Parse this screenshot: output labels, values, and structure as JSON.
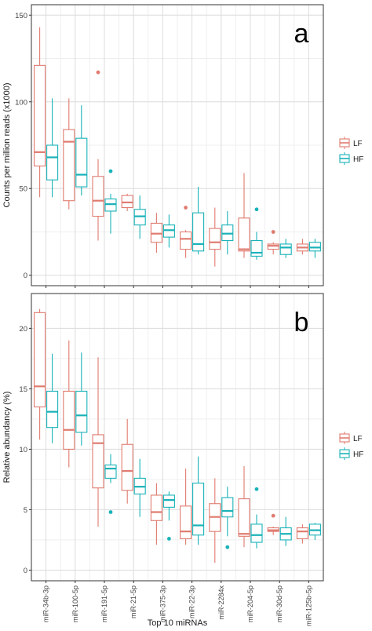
{
  "colors": {
    "LF": "#e07b6f",
    "HF": "#19b2b8",
    "grid_major": "#dcdcdc",
    "grid_minor": "#efefef",
    "border": "#333333",
    "text": "#1a1a1a"
  },
  "chart_data": [
    {
      "type": "boxplot",
      "panel_label": "a",
      "ylabel": "Counts per million reads (x1000)",
      "xlabel": "",
      "ylim": [
        0,
        150
      ],
      "yticks": [
        0,
        50,
        100,
        150
      ],
      "grid": true,
      "legend": {
        "placement": "right",
        "entries": [
          "LF",
          "HF"
        ]
      },
      "categories": [
        "miR-34b-3p",
        "miR-100-5p",
        "miR-191-5p",
        "miR-21-5p",
        "miR-375-3p",
        "miR-22-3p",
        "miR-2284x",
        "miR-204-5p",
        "miR-30d-5p",
        "miR-125b-5p"
      ],
      "series": [
        {
          "name": "LF",
          "boxes": [
            {
              "min": 45,
              "q1": 63,
              "median": 71,
              "q3": 121,
              "max": 143,
              "outliers": []
            },
            {
              "min": 38,
              "q1": 43,
              "median": 77,
              "q3": 84,
              "max": 102,
              "outliers": []
            },
            {
              "min": 20,
              "q1": 34,
              "median": 43,
              "q3": 57,
              "max": 67,
              "outliers": [
                117
              ]
            },
            {
              "min": 37,
              "q1": 39,
              "median": 42,
              "q3": 46,
              "max": 47,
              "outliers": []
            },
            {
              "min": 13,
              "q1": 19,
              "median": 24,
              "q3": 30,
              "max": 36,
              "outliers": []
            },
            {
              "min": 10,
              "q1": 15,
              "median": 21,
              "q3": 25,
              "max": 26,
              "outliers": [
                39
              ]
            },
            {
              "min": 5,
              "q1": 15,
              "median": 19,
              "q3": 27,
              "max": 39,
              "outliers": []
            },
            {
              "min": 10,
              "q1": 14,
              "median": 15,
              "q3": 33,
              "max": 59,
              "outliers": []
            },
            {
              "min": 12,
              "q1": 15,
              "median": 17,
              "q3": 18,
              "max": 19,
              "outliers": [
                25
              ]
            },
            {
              "min": 12,
              "q1": 14,
              "median": 16,
              "q3": 18,
              "max": 21,
              "outliers": []
            }
          ]
        },
        {
          "name": "HF",
          "boxes": [
            {
              "min": 45,
              "q1": 55,
              "median": 68,
              "q3": 75,
              "max": 102,
              "outliers": []
            },
            {
              "min": 46,
              "q1": 51,
              "median": 58,
              "q3": 79,
              "max": 98,
              "outliers": []
            },
            {
              "min": 24,
              "q1": 37,
              "median": 41,
              "q3": 44,
              "max": 47,
              "outliers": [
                60
              ]
            },
            {
              "min": 21,
              "q1": 29,
              "median": 34,
              "q3": 38,
              "max": 46,
              "outliers": []
            },
            {
              "min": 16,
              "q1": 22,
              "median": 26,
              "q3": 29,
              "max": 35,
              "outliers": []
            },
            {
              "min": 12,
              "q1": 14,
              "median": 18,
              "q3": 36,
              "max": 51,
              "outliers": []
            },
            {
              "min": 12,
              "q1": 20,
              "median": 24,
              "q3": 29,
              "max": 37,
              "outliers": []
            },
            {
              "min": 9,
              "q1": 11,
              "median": 13,
              "q3": 20,
              "max": 25,
              "outliers": [
                38
              ]
            },
            {
              "min": 10,
              "q1": 12,
              "median": 16,
              "q3": 18,
              "max": 21,
              "outliers": []
            },
            {
              "min": 10,
              "q1": 14,
              "median": 16,
              "q3": 19,
              "max": 21,
              "outliers": []
            }
          ]
        }
      ]
    },
    {
      "type": "boxplot",
      "panel_label": "b",
      "ylabel": "Relative abundancy (%)",
      "xlabel": "Top 10 miRNAs",
      "ylim": [
        0,
        22
      ],
      "yticks": [
        0,
        5,
        10,
        15,
        20
      ],
      "grid": true,
      "legend": {
        "placement": "right",
        "entries": [
          "LF",
          "HF"
        ]
      },
      "categories": [
        "miR-34b-3p",
        "miR-100-5p",
        "miR-191-5p",
        "miR-21-5p",
        "miR-375-3p",
        "miR-22-3p",
        "miR-2284x",
        "miR-204-5p",
        "miR-30d-5p",
        "miR-125b-5p"
      ],
      "series": [
        {
          "name": "LF",
          "boxes": [
            {
              "min": 10.8,
              "q1": 13.5,
              "median": 15.2,
              "q3": 21.3,
              "max": 21.6,
              "outliers": []
            },
            {
              "min": 8.5,
              "q1": 10,
              "median": 11.6,
              "q3": 14.8,
              "max": 19,
              "outliers": []
            },
            {
              "min": 3.6,
              "q1": 6.8,
              "median": 10.5,
              "q3": 11.2,
              "max": 17.6,
              "outliers": []
            },
            {
              "min": 5.5,
              "q1": 6.6,
              "median": 8.2,
              "q3": 10.4,
              "max": 12.5,
              "outliers": []
            },
            {
              "min": 2.1,
              "q1": 4.1,
              "median": 4.8,
              "q3": 6.2,
              "max": 7.2,
              "outliers": []
            },
            {
              "min": 2.1,
              "q1": 2.6,
              "median": 3.2,
              "q3": 5.3,
              "max": 8.4,
              "outliers": []
            },
            {
              "min": 0.6,
              "q1": 3.2,
              "median": 4.4,
              "q3": 5.5,
              "max": 7.6,
              "outliers": []
            },
            {
              "min": 1.9,
              "q1": 2.8,
              "median": 3,
              "q3": 5.9,
              "max": 8.6,
              "outliers": []
            },
            {
              "min": 2.9,
              "q1": 3.2,
              "median": 3.3,
              "q3": 3.5,
              "max": 3.6,
              "outliers": [
                4.5
              ]
            },
            {
              "min": 2.2,
              "q1": 2.6,
              "median": 3.2,
              "q3": 3.5,
              "max": 3.8,
              "outliers": []
            }
          ]
        },
        {
          "name": "HF",
          "boxes": [
            {
              "min": 10.5,
              "q1": 11.8,
              "median": 13.1,
              "q3": 14.8,
              "max": 17.9,
              "outliers": []
            },
            {
              "min": 10.3,
              "q1": 11.4,
              "median": 12.8,
              "q3": 14.8,
              "max": 18,
              "outliers": []
            },
            {
              "min": 7.2,
              "q1": 7.6,
              "median": 8.4,
              "q3": 8.7,
              "max": 9.6,
              "outliers": [
                4.8
              ]
            },
            {
              "min": 4.4,
              "q1": 6.3,
              "median": 6.9,
              "q3": 7.6,
              "max": 9.2,
              "outliers": []
            },
            {
              "min": 4.1,
              "q1": 5.2,
              "median": 5.8,
              "q3": 6.2,
              "max": 6.5,
              "outliers": [
                2.6
              ]
            },
            {
              "min": 2.1,
              "q1": 2.9,
              "median": 3.7,
              "q3": 7.2,
              "max": 9.4,
              "outliers": []
            },
            {
              "min": 2.8,
              "q1": 4.4,
              "median": 4.9,
              "q3": 6,
              "max": 6.9,
              "outliers": [
                1.9
              ]
            },
            {
              "min": 1.8,
              "q1": 2.3,
              "median": 2.9,
              "q3": 3.8,
              "max": 4.6,
              "outliers": [
                6.7
              ]
            },
            {
              "min": 2,
              "q1": 2.5,
              "median": 3,
              "q3": 3.5,
              "max": 4.4,
              "outliers": []
            },
            {
              "min": 2.5,
              "q1": 2.9,
              "median": 3.3,
              "q3": 3.8,
              "max": 3.9,
              "outliers": []
            }
          ]
        }
      ]
    }
  ]
}
